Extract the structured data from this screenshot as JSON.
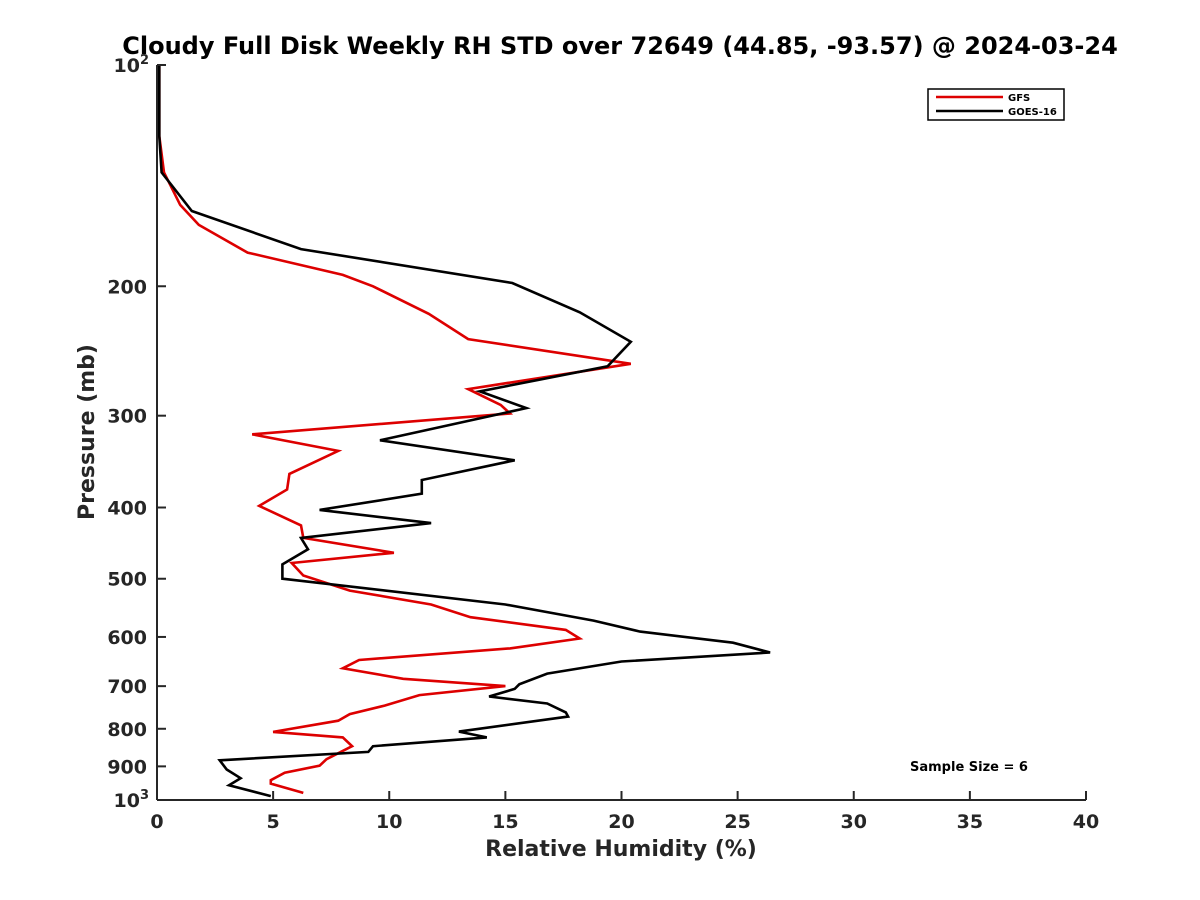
{
  "chart_data": {
    "type": "line",
    "title": "Cloudy Full Disk Weekly RH STD over 72649 (44.85, -93.57) @ 2024-03-24",
    "xlabel": "Relative Humidity (%)",
    "ylabel": "Pressure (mb)",
    "xlim": [
      0,
      40
    ],
    "ylim": [
      100,
      1000
    ],
    "y_scale": "log",
    "y_reversed": true,
    "x_ticks": [
      0,
      5,
      10,
      15,
      20,
      25,
      30,
      35,
      40
    ],
    "y_ticks": [
      200,
      300,
      400,
      500,
      600,
      700,
      800,
      900
    ],
    "y_tick_labels": [
      "200",
      "300",
      "400",
      "500",
      "600",
      "700",
      "800",
      "900"
    ],
    "y_limit_labels": [
      {
        "value": 100,
        "base": "10",
        "exp": "2"
      },
      {
        "value": 1000,
        "base": "10",
        "exp": "3"
      }
    ],
    "grid": false,
    "legend_position": "top-right",
    "annotation": "Sample Size = 6",
    "series": [
      {
        "name": "GFS",
        "color": "#dd0000",
        "points": [
          [
            0.1,
            100
          ],
          [
            0.1,
            110
          ],
          [
            0.1,
            125
          ],
          [
            0.3,
            140
          ],
          [
            1.0,
            155
          ],
          [
            1.8,
            165
          ],
          [
            3.9,
            180
          ],
          [
            8.0,
            193
          ],
          [
            9.3,
            200
          ],
          [
            11.7,
            218
          ],
          [
            13.4,
            236
          ],
          [
            20.4,
            255
          ],
          [
            13.4,
            276
          ],
          [
            14.8,
            290
          ],
          [
            15.2,
            298
          ],
          [
            4.1,
            318
          ],
          [
            7.8,
            335
          ],
          [
            5.7,
            360
          ],
          [
            5.6,
            378
          ],
          [
            4.4,
            398
          ],
          [
            6.2,
            423
          ],
          [
            6.3,
            440
          ],
          [
            10.2,
            461
          ],
          [
            5.8,
            476
          ],
          [
            6.3,
            495
          ],
          [
            8.3,
            519
          ],
          [
            11.8,
            542
          ],
          [
            13.5,
            564
          ],
          [
            17.6,
            587
          ],
          [
            18.2,
            603
          ],
          [
            15.2,
            622
          ],
          [
            8.7,
            645
          ],
          [
            8.0,
            662
          ],
          [
            10.6,
            684
          ],
          [
            15.0,
            700
          ],
          [
            11.3,
            720
          ],
          [
            9.8,
            744
          ],
          [
            8.3,
            764
          ],
          [
            7.8,
            780
          ],
          [
            5.0,
            808
          ],
          [
            8.0,
            822
          ],
          [
            8.4,
            845
          ],
          [
            7.3,
            880
          ],
          [
            7.0,
            898
          ],
          [
            5.5,
            918
          ],
          [
            4.9,
            940
          ],
          [
            4.9,
            950
          ],
          [
            6.3,
            978
          ]
        ]
      },
      {
        "name": "GOES-16",
        "color": "#000000",
        "points": [
          [
            0.1,
            100
          ],
          [
            0.1,
            110
          ],
          [
            0.1,
            125
          ],
          [
            0.2,
            140
          ],
          [
            1.5,
            158
          ],
          [
            6.2,
            178
          ],
          [
            15.3,
            198
          ],
          [
            18.2,
            217
          ],
          [
            20.4,
            238
          ],
          [
            19.4,
            257
          ],
          [
            13.9,
            278
          ],
          [
            15.9,
            293
          ],
          [
            9.6,
            324
          ],
          [
            15.4,
            345
          ],
          [
            11.4,
            367
          ],
          [
            11.4,
            383
          ],
          [
            7.0,
            403
          ],
          [
            11.8,
            420
          ],
          [
            6.2,
            440
          ],
          [
            6.5,
            456
          ],
          [
            5.4,
            478
          ],
          [
            5.4,
            500
          ],
          [
            15.0,
            542
          ],
          [
            18.8,
            570
          ],
          [
            20.8,
            590
          ],
          [
            24.8,
            611
          ],
          [
            26.4,
            630
          ],
          [
            20.0,
            648
          ],
          [
            16.8,
            673
          ],
          [
            15.6,
            696
          ],
          [
            15.4,
            706
          ],
          [
            14.3,
            723
          ],
          [
            16.8,
            739
          ],
          [
            17.6,
            760
          ],
          [
            17.7,
            770
          ],
          [
            13.0,
            807
          ],
          [
            14.2,
            822
          ],
          [
            9.3,
            845
          ],
          [
            9.1,
            860
          ],
          [
            2.7,
            883
          ],
          [
            3.0,
            909
          ],
          [
            3.6,
            934
          ],
          [
            3.1,
            955
          ],
          [
            4.9,
            988
          ]
        ]
      }
    ]
  }
}
